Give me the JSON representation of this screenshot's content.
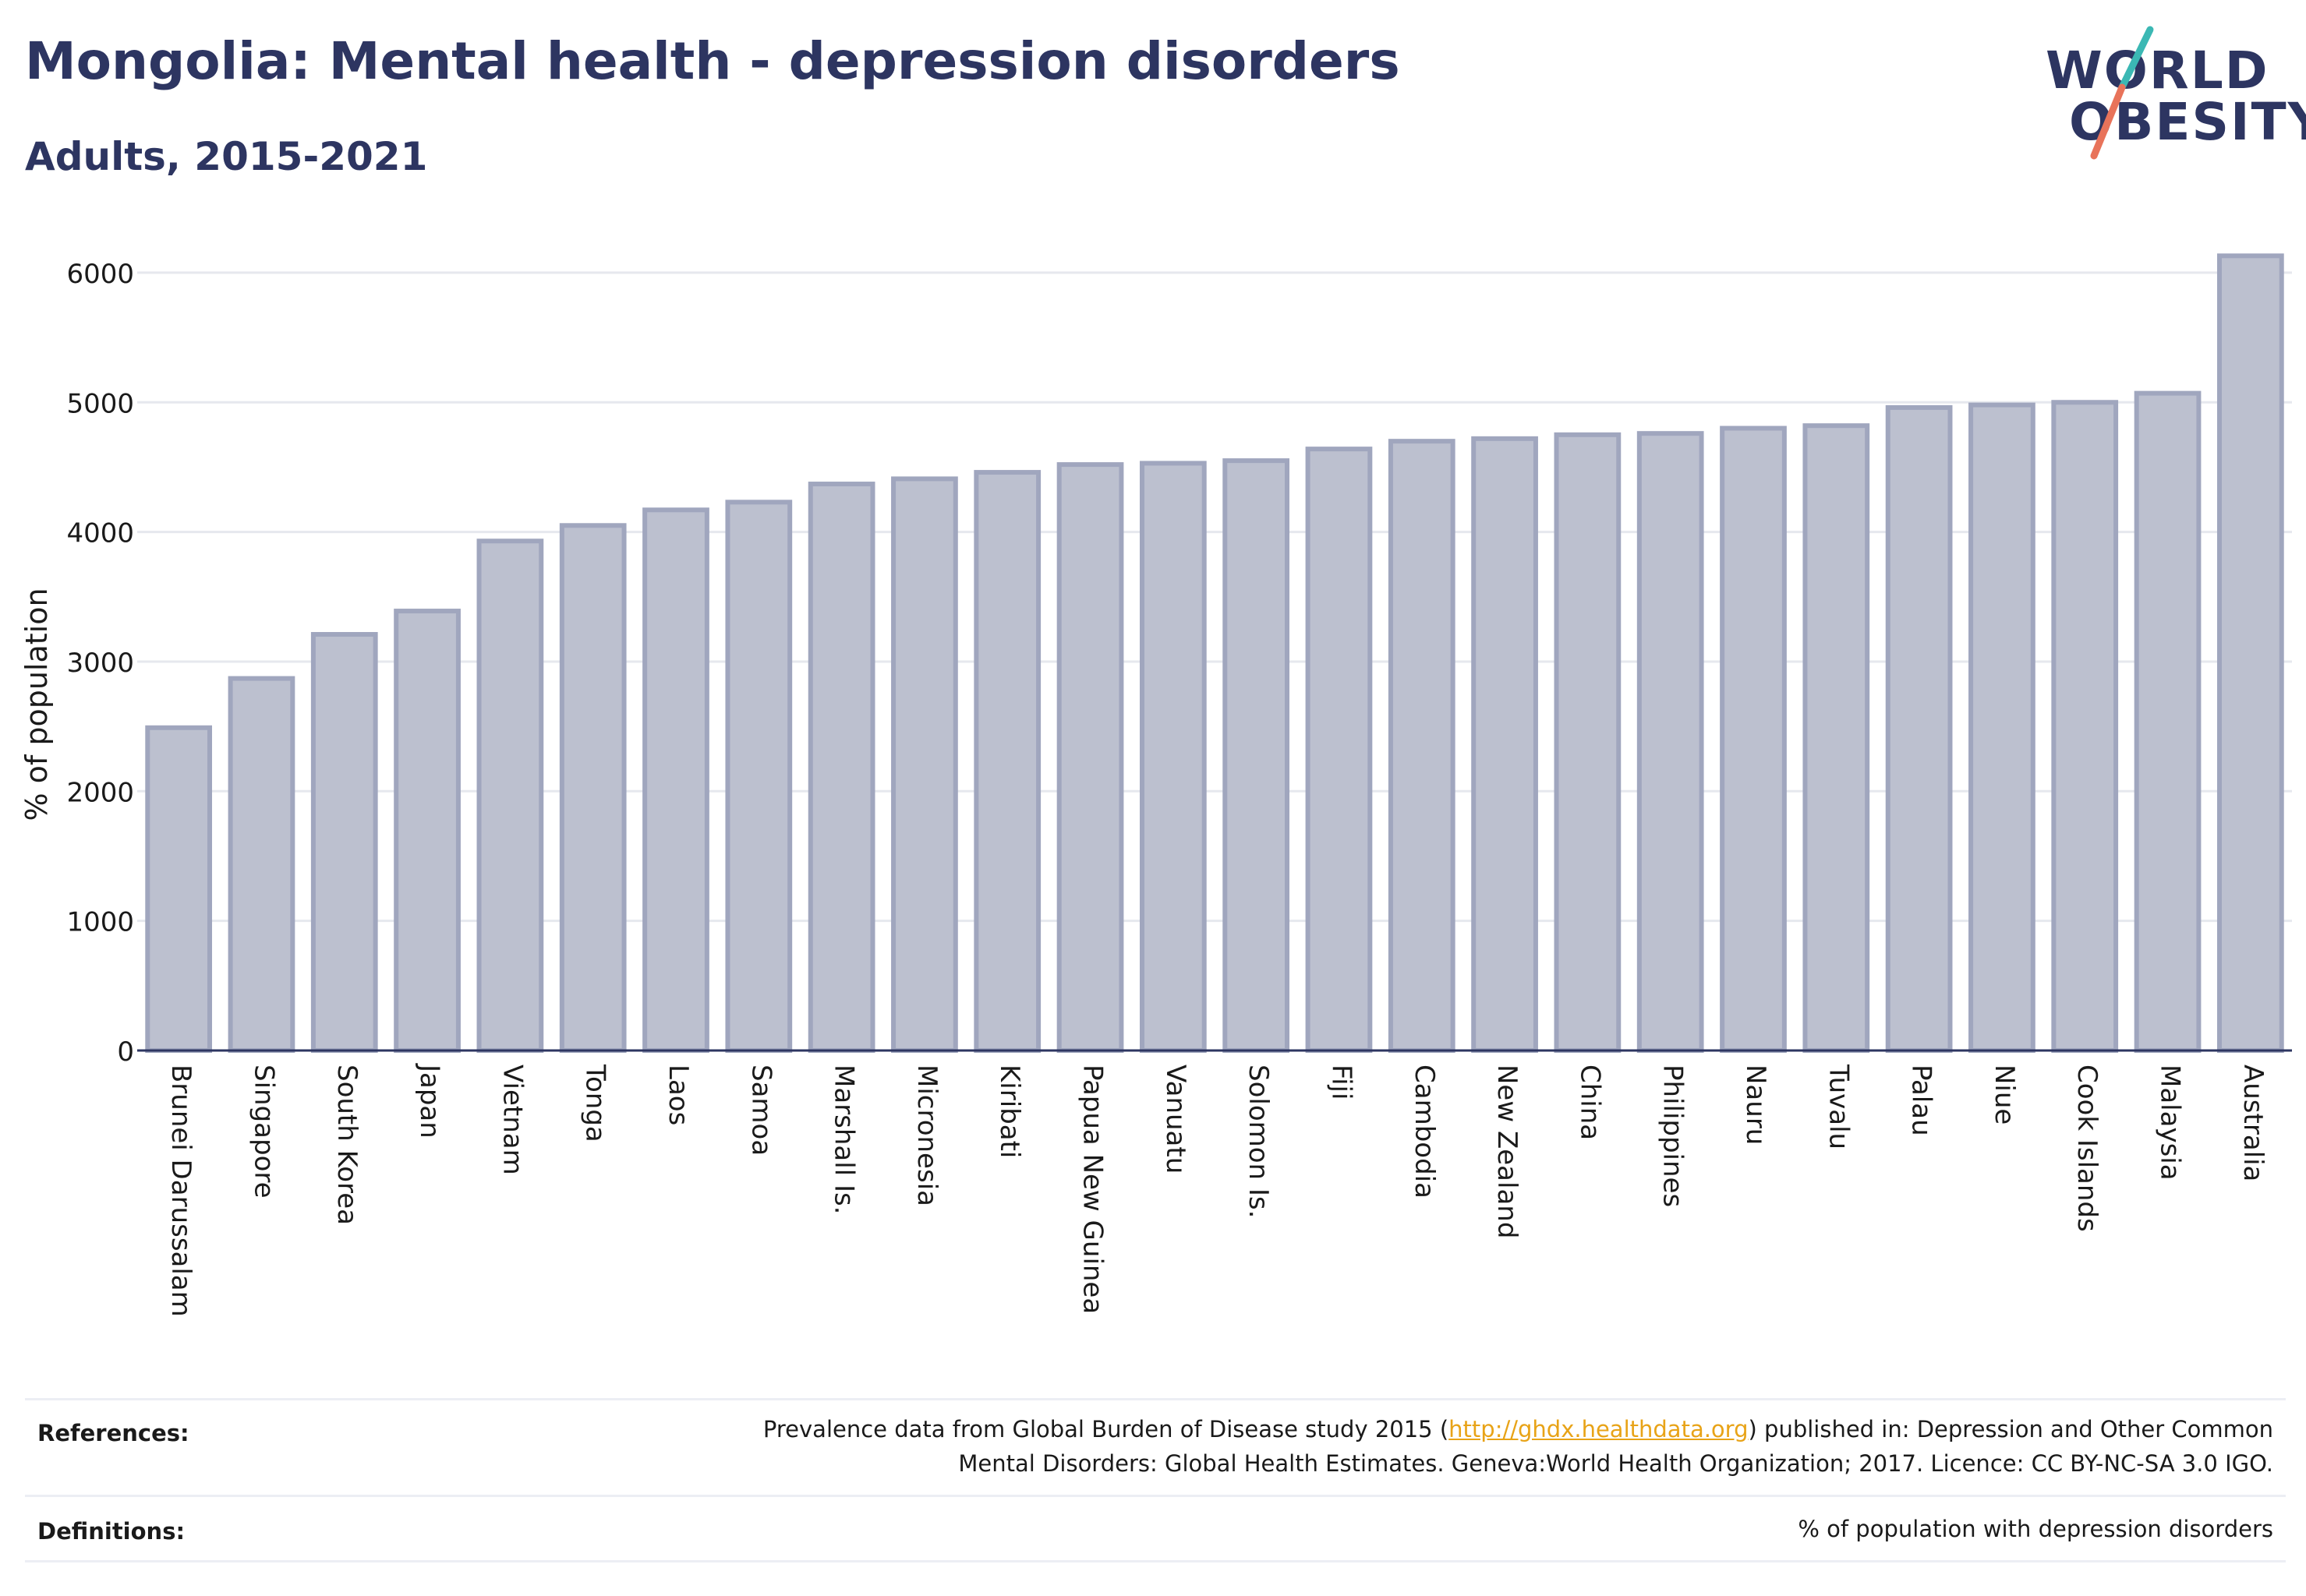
{
  "title": "Mongolia: Mental health - depression disorders",
  "subtitle": "Adults, 2015-2021",
  "logo": {
    "line1": "WORLD",
    "line2": "OBESITY",
    "accent_teal": "#3bb8b4",
    "accent_coral": "#e8735a"
  },
  "colors": {
    "bar_fill": "#bcc0cf",
    "bar_stroke": "#a0a6be",
    "grid": "#e6e8ee",
    "axis": "#2d3561",
    "link": "#e8a317"
  },
  "chart_data": {
    "type": "bar",
    "categories": [
      "Brunei Darussalam",
      "Singapore",
      "South Korea",
      "Japan",
      "Vietnam",
      "Tonga",
      "Laos",
      "Samoa",
      "Marshall Is.",
      "Micronesia",
      "Kiribati",
      "Papua New Guinea",
      "Vanuatu",
      "Solomon Is.",
      "Fiji",
      "Cambodia",
      "New Zealand",
      "China",
      "Philippines",
      "Nauru",
      "Tuvalu",
      "Palau",
      "Niue",
      "Cook Islands",
      "Malaysia",
      "Australia"
    ],
    "values": [
      2490,
      2870,
      3210,
      3390,
      3930,
      4050,
      4170,
      4230,
      4370,
      4410,
      4460,
      4520,
      4530,
      4550,
      4640,
      4700,
      4720,
      4750,
      4760,
      4800,
      4820,
      4960,
      4980,
      5000,
      5070,
      6130
    ],
    "ylabel": "% of population",
    "xlabel": "",
    "ylim": [
      0,
      6300
    ],
    "yticks": [
      0,
      1000,
      2000,
      3000,
      4000,
      5000,
      6000
    ],
    "grid": true,
    "legend": "none"
  },
  "footer": {
    "references_label": "References:",
    "references_text_pre": "Prevalence data from Global Burden of Disease study 2015 (",
    "references_link": "http://ghdx.healthdata.org",
    "references_text_post": ") published in: Depression and Other Common",
    "references_line2": "Mental Disorders: Global Health Estimates. Geneva:World Health Organization; 2017. Licence: CC BY-NC-SA 3.0 IGO.",
    "definitions_label": "Definitions:",
    "definitions_text": "% of population with depression disorders"
  }
}
